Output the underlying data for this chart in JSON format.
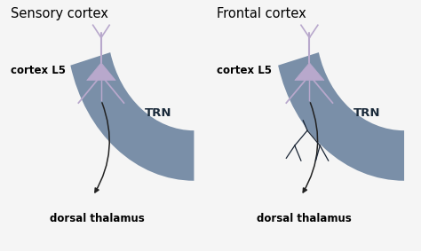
{
  "title_left": "Sensory cortex",
  "title_right": "Frontal cortex",
  "bg_color": "#f5f5f5",
  "neuron_color": "#b8a8cc",
  "trn_color": "#7a8fa8",
  "trn_label_color": "#1a2a3a",
  "trn_label": "TRN",
  "cortex_label": "cortex L5",
  "thalamus_label": "dorsal thalamus",
  "arrow_color": "#222222",
  "title_fontsize": 10.5,
  "label_fontsize": 8.5,
  "trn_fontsize": 9.5,
  "panel_bg": "#ffffff"
}
